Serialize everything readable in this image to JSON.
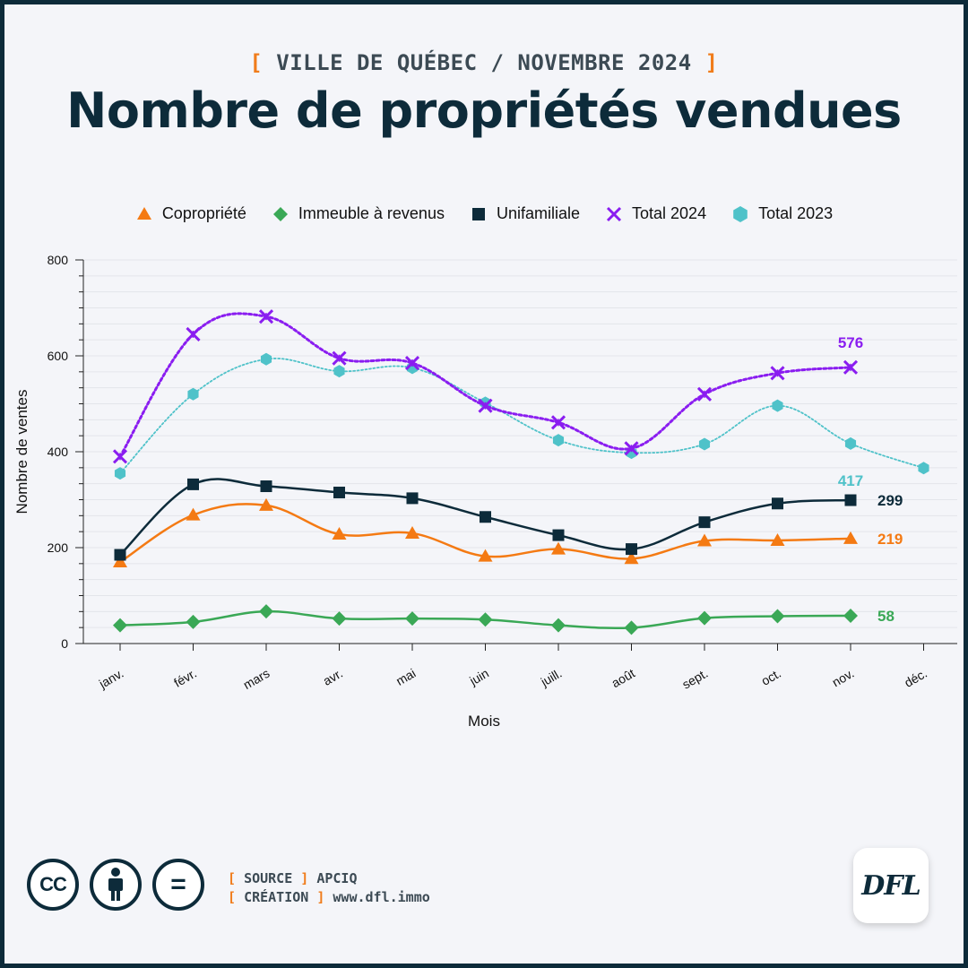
{
  "header": {
    "kicker_open": "[",
    "kicker_text": "VILLE DE QUÉBEC / NOVEMBRE 2024",
    "kicker_close": "]",
    "title": "Nombre de propriétés vendues"
  },
  "footer": {
    "source_label": "SOURCE",
    "source_value": "APCIQ",
    "creation_label": "CRÉATION",
    "creation_value": "www.dfl.immo",
    "open_bracket": "[",
    "close_bracket": "]",
    "logo_text": "DFL",
    "cc_label": "CC",
    "equals_label": "=",
    "license_icons": [
      "cc-icon",
      "attribution-icon",
      "no-derivatives-icon"
    ]
  },
  "chart_data": {
    "type": "line",
    "xlabel": "Mois",
    "ylabel": "Nombre de ventes",
    "ylim": [
      0,
      800
    ],
    "yticks": [
      0,
      200,
      400,
      600,
      800
    ],
    "categories": [
      "janv.",
      "févr.",
      "mars",
      "avr.",
      "mai",
      "juin",
      "juill.",
      "août",
      "sept.",
      "oct.",
      "nov.",
      "déc."
    ],
    "legend_position": "top",
    "grid": true,
    "series": [
      {
        "name": "Copropriété",
        "color": "#f47a13",
        "marker": "triangle",
        "dash": false,
        "values": [
          170,
          268,
          288,
          228,
          230,
          182,
          197,
          177,
          214,
          215,
          219,
          null
        ],
        "end_label": "219"
      },
      {
        "name": "Immeuble à revenus",
        "color": "#3aa856",
        "marker": "diamond",
        "dash": false,
        "values": [
          38,
          45,
          67,
          52,
          52,
          50,
          38,
          33,
          53,
          57,
          58,
          null
        ],
        "end_label": "58"
      },
      {
        "name": "Unifamiliale",
        "color": "#0d2b3a",
        "marker": "square",
        "dash": false,
        "values": [
          185,
          332,
          328,
          315,
          303,
          264,
          226,
          197,
          253,
          292,
          299,
          null
        ],
        "end_label": "299"
      },
      {
        "name": "Total 2024",
        "color": "#8a1df0",
        "marker": "cross",
        "dash": true,
        "values": [
          390,
          645,
          682,
          595,
          585,
          496,
          461,
          407,
          520,
          564,
          576,
          null
        ],
        "end_label": "576"
      },
      {
        "name": "Total 2023",
        "color": "#4fc2c9",
        "marker": "hexagon",
        "dash": true,
        "values": [
          355,
          520,
          593,
          568,
          575,
          502,
          424,
          398,
          416,
          496,
          417,
          366
        ],
        "end_label": "417"
      }
    ]
  }
}
